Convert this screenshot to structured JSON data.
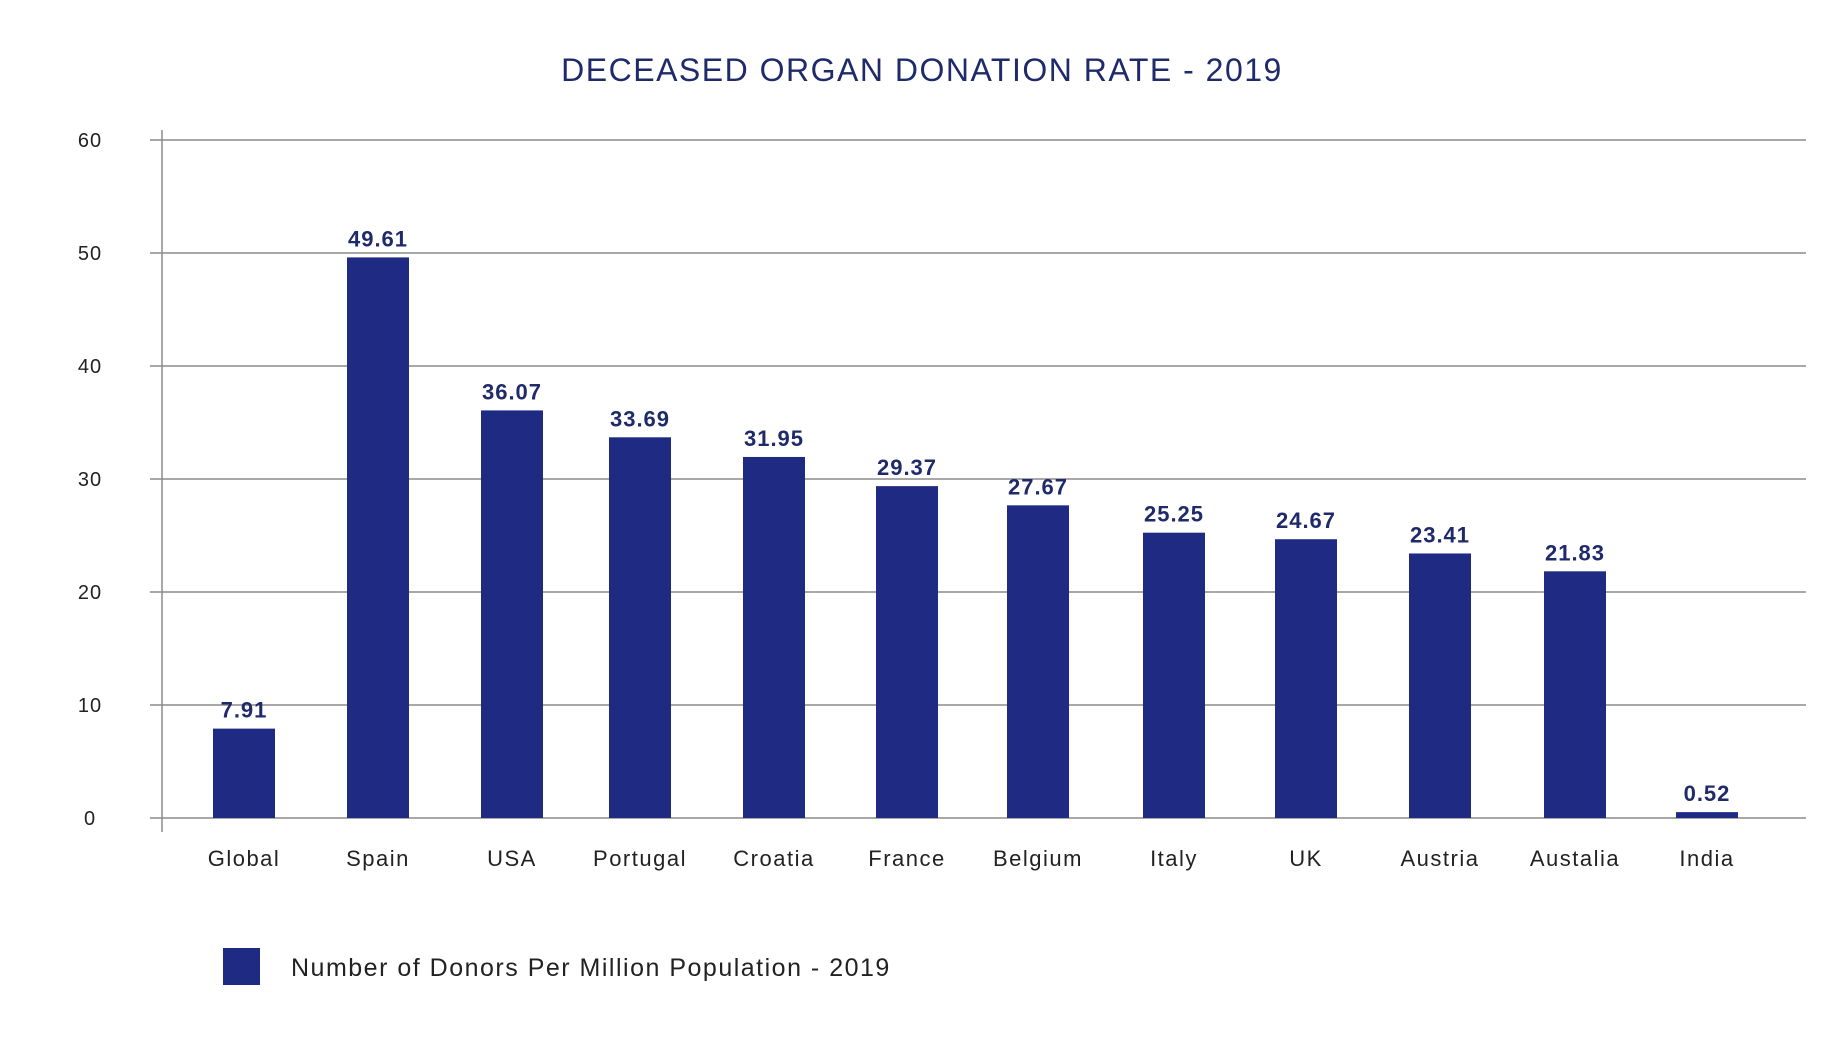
{
  "colors": {
    "bar": "#1f2a83",
    "title": "#1f2a6b",
    "value_label": "#1f2a6b",
    "axis_text": "#222222",
    "grid": "#8c8c8c"
  },
  "chart_data": {
    "type": "bar",
    "title": "DECEASED ORGAN DONATION RATE - 2019",
    "xlabel": "",
    "ylabel": "",
    "ylim": [
      0,
      60
    ],
    "yticks": [
      0,
      10,
      20,
      30,
      40,
      50,
      60
    ],
    "grid": true,
    "legend_position": "bottom-left",
    "categories": [
      "Global",
      "Spain",
      "USA",
      "Portugal",
      "Croatia",
      "France",
      "Belgium",
      "Italy",
      "UK",
      "Austria",
      "Austalia",
      "India"
    ],
    "series": [
      {
        "name": "Number of Donors Per Million Population - 2019",
        "values": [
          7.91,
          49.61,
          36.07,
          33.69,
          31.95,
          29.37,
          27.67,
          25.25,
          24.67,
          23.41,
          21.83,
          0.52
        ],
        "labels": [
          "7.91",
          "49.61",
          "36.07",
          "33.69",
          "31.95",
          "29.37",
          "27.67",
          "25.25",
          "24.67",
          "23.41",
          "21.83",
          "0.52"
        ]
      }
    ]
  }
}
